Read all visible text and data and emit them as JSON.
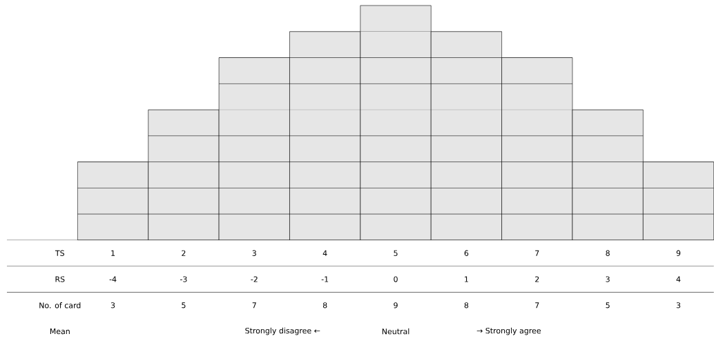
{
  "chart_data": {
    "type": "bar",
    "categories": [
      "1",
      "2",
      "3",
      "4",
      "5",
      "6",
      "7",
      "8",
      "9"
    ],
    "values": [
      3,
      5,
      7,
      8,
      9,
      8,
      7,
      5,
      3
    ],
    "color": "#e6e6e6",
    "data_labels": true,
    "xlabel": "TS",
    "ylim": [
      0,
      9
    ],
    "grid": "y",
    "tick_labels": "x",
    "yticks": [
      {
        "value": 1,
        "label": null
      },
      {
        "value": 2,
        "label": null
      },
      {
        "value": 3,
        "label": null
      },
      {
        "value": 4,
        "label": null
      },
      {
        "value": 5,
        "label": null
      },
      {
        "value": 6,
        "label": null
      },
      {
        "value": 7,
        "label": null
      },
      {
        "value": 8,
        "label": null
      }
    ],
    "annotations": [
      "RS",
      "-4",
      "-3",
      "-2",
      "-1",
      "0",
      "1",
      "2",
      "3",
      "4",
      "No. of card",
      "Mean",
      "Strongly disagree ←",
      "Neutral",
      "→ Strongly agree"
    ]
  }
}
